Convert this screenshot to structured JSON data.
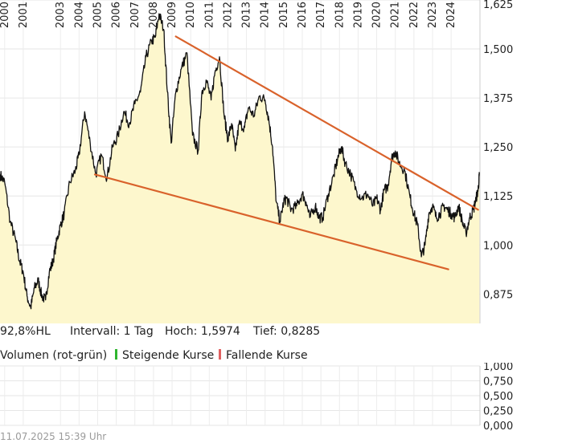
{
  "chart_data": [
    {
      "type": "area",
      "title": "",
      "xlabel": "",
      "ylabel": "",
      "x_tick_labels": [
        "2000",
        "2001",
        "2003",
        "2004",
        "2005",
        "2006",
        "2007",
        "2008",
        "2009",
        "2010",
        "2011",
        "2012",
        "2013",
        "2014",
        "2015",
        "2016",
        "2017",
        "2018",
        "2019",
        "2020",
        "2021",
        "2022",
        "2023",
        "2024"
      ],
      "xlim": [
        1999.75,
        2025.55
      ],
      "ylim": [
        0.8,
        1.625
      ],
      "y_ticks": [
        "0,875",
        "1,000",
        "1,125",
        "1,250",
        "1,375",
        "1,500",
        "1,625"
      ],
      "y_tick_values": [
        0.875,
        1.0,
        1.125,
        1.25,
        1.375,
        1.5,
        1.625
      ],
      "grid": true,
      "series": [
        {
          "name": "Kurs",
          "x": [
            1999.75,
            2000.0,
            2000.3,
            2000.6,
            2000.8,
            2001.0,
            2001.2,
            2001.4,
            2001.6,
            2001.8,
            2002.0,
            2002.2,
            2002.4,
            2002.6,
            2002.8,
            2003.0,
            2003.2,
            2003.5,
            2003.8,
            2004.0,
            2004.3,
            2004.6,
            2004.9,
            2005.2,
            2005.5,
            2005.8,
            2006.1,
            2006.4,
            2006.7,
            2007.0,
            2007.3,
            2007.6,
            2007.9,
            2008.1,
            2008.3,
            2008.55,
            2008.75,
            2008.95,
            2009.2,
            2009.5,
            2009.8,
            2010.1,
            2010.4,
            2010.6,
            2010.85,
            2011.1,
            2011.3,
            2011.55,
            2011.8,
            2012.0,
            2012.2,
            2012.4,
            2012.6,
            2012.9,
            2013.1,
            2013.4,
            2013.7,
            2014.0,
            2014.2,
            2014.4,
            2014.6,
            2014.8,
            2015.0,
            2015.15,
            2015.4,
            2015.7,
            2016.0,
            2016.2,
            2016.4,
            2016.7,
            2016.9,
            2017.1,
            2017.4,
            2017.7,
            2017.9,
            2018.1,
            2018.3,
            2018.6,
            2018.9,
            2019.2,
            2019.5,
            2019.8,
            2020.0,
            2020.2,
            2020.4,
            2020.6,
            2020.8,
            2021.0,
            2021.2,
            2021.5,
            2021.8,
            2022.0,
            2022.2,
            2022.4,
            2022.6,
            2022.8,
            2023.0,
            2023.2,
            2023.4,
            2023.6,
            2023.8,
            2024.0,
            2024.2,
            2024.4,
            2024.6,
            2024.8,
            2025.0,
            2025.2,
            2025.35,
            2025.45,
            2025.52
          ],
          "values": [
            1.18,
            1.16,
            1.06,
            1.01,
            0.96,
            0.93,
            0.87,
            0.84,
            0.89,
            0.91,
            0.87,
            0.86,
            0.93,
            0.96,
            1.01,
            1.05,
            1.08,
            1.16,
            1.19,
            1.23,
            1.34,
            1.26,
            1.18,
            1.23,
            1.17,
            1.25,
            1.28,
            1.34,
            1.31,
            1.36,
            1.39,
            1.48,
            1.52,
            1.53,
            1.59,
            1.55,
            1.39,
            1.26,
            1.39,
            1.45,
            1.49,
            1.28,
            1.24,
            1.39,
            1.42,
            1.37,
            1.44,
            1.48,
            1.33,
            1.27,
            1.31,
            1.24,
            1.31,
            1.3,
            1.35,
            1.33,
            1.38,
            1.37,
            1.32,
            1.25,
            1.11,
            1.06,
            1.11,
            1.12,
            1.09,
            1.1,
            1.13,
            1.11,
            1.07,
            1.1,
            1.07,
            1.07,
            1.13,
            1.18,
            1.22,
            1.25,
            1.21,
            1.18,
            1.14,
            1.12,
            1.13,
            1.1,
            1.12,
            1.09,
            1.14,
            1.15,
            1.22,
            1.24,
            1.21,
            1.19,
            1.12,
            1.08,
            1.05,
            0.97,
            1.0,
            1.08,
            1.1,
            1.07,
            1.08,
            1.1,
            1.09,
            1.08,
            1.07,
            1.1,
            1.06,
            1.03,
            1.07,
            1.09,
            1.12,
            1.14,
            1.18
          ]
        }
      ],
      "trendlines": [
        {
          "name": "upper-trendline",
          "x": [
            2009.2,
            2025.45
          ],
          "values": [
            1.532,
            1.09
          ]
        },
        {
          "name": "lower-trendline",
          "x": [
            2004.85,
            2023.85
          ],
          "values": [
            1.18,
            0.938
          ]
        }
      ],
      "line_color": "#111111",
      "fill_color": "#fdf7cd",
      "trendline_color": "#d9622b"
    },
    {
      "type": "bar",
      "title": "Volumen (rot-grün)",
      "ylim": [
        0,
        1.0
      ],
      "y_ticks": [
        "0,000",
        "0,250",
        "0,500",
        "0,750",
        "1,000"
      ],
      "y_tick_values": [
        0,
        0.25,
        0.5,
        0.75,
        1.0
      ],
      "series": [],
      "grid": true
    }
  ],
  "info": {
    "range_label": "92,8%HL",
    "interval_label": "Intervall: 1 Tag",
    "high_label": "Hoch: 1,5974",
    "low_label": "Tief: 0,8285"
  },
  "volume_legend": {
    "title": "Volumen (rot-grün)",
    "rising_label": "Steigende Kurse",
    "falling_label": "Fallende Kurse",
    "rising_color": "#2fb52f",
    "falling_color": "#e06060"
  },
  "timestamp": "11.07.2025 15:39 Uhr"
}
